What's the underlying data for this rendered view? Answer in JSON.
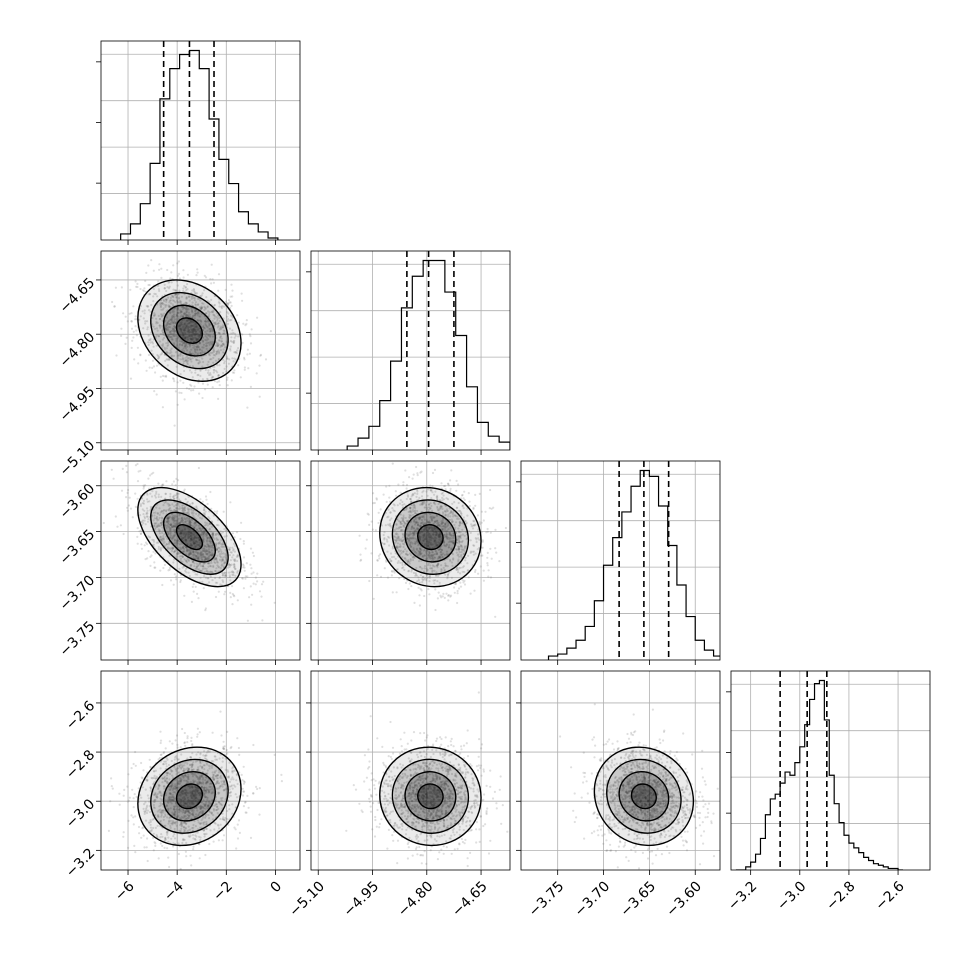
{
  "chart_data": {
    "type": "corner",
    "parameters": [
      {
        "ticks": [
          -6,
          -4,
          -2,
          0
        ],
        "tick_labels": [
          "−6",
          "−4",
          "−2",
          "0"
        ],
        "xlim": [
          -7.1,
          1.0
        ],
        "mean": -3.5,
        "sd": 1.05,
        "quantiles": [
          -4.55,
          -3.5,
          -2.5
        ],
        "hist_edges": [
          -6.3,
          -5.9,
          -5.5,
          -5.1,
          -4.7,
          -4.3,
          -3.9,
          -3.5,
          -3.1,
          -2.7,
          -2.3,
          -1.9,
          -1.5,
          -1.1,
          -0.7,
          -0.3,
          0.1
        ],
        "hist_counts": [
          3,
          8,
          18,
          38,
          70,
          85,
          92,
          94,
          85,
          60,
          40,
          28,
          14,
          8,
          4,
          1
        ]
      },
      {
        "ticks": [
          -5.1,
          -4.95,
          -4.8,
          -4.65
        ],
        "tick_labels": [
          "−5.10",
          "−4.95",
          "−4.80",
          "−4.65"
        ],
        "xlim": [
          -5.12,
          -4.57
        ],
        "mean": -4.79,
        "sd": 0.07,
        "quantiles": [
          -4.855,
          -4.795,
          -4.725
        ],
        "hist_edges": [
          -5.02,
          -4.99,
          -4.96,
          -4.93,
          -4.9,
          -4.87,
          -4.84,
          -4.81,
          -4.78,
          -4.75,
          -4.72,
          -4.69,
          -4.66,
          -4.63,
          -4.6,
          -4.57
        ],
        "hist_counts": [
          2,
          6,
          12,
          25,
          45,
          72,
          88,
          96,
          96,
          80,
          58,
          32,
          14,
          7,
          4
        ]
      },
      {
        "ticks": [
          -3.75,
          -3.7,
          -3.65,
          -3.6
        ],
        "tick_labels": [
          "−3.75",
          "−3.70",
          "−3.65",
          "−3.60"
        ],
        "xlim": [
          -3.79,
          -3.573
        ],
        "mean": -3.656,
        "sd": 0.027,
        "quantiles": [
          -3.683,
          -3.656,
          -3.629
        ],
        "hist_edges": [
          -3.76,
          -3.75,
          -3.74,
          -3.73,
          -3.72,
          -3.71,
          -3.7,
          -3.69,
          -3.68,
          -3.67,
          -3.66,
          -3.65,
          -3.64,
          -3.63,
          -3.62,
          -3.61,
          -3.6,
          -3.59,
          -3.58,
          -3.57
        ],
        "hist_counts": [
          2,
          3,
          6,
          10,
          17,
          30,
          48,
          62,
          75,
          88,
          96,
          93,
          78,
          58,
          38,
          22,
          10,
          5,
          2
        ]
      },
      {
        "ticks": [
          -3.2,
          -3.0,
          -2.8,
          -2.6
        ],
        "tick_labels": [
          "−3.2",
          "−3.0",
          "−2.8",
          "−2.6"
        ],
        "xlim": [
          -3.28,
          -2.47
        ],
        "mean": -2.98,
        "sd": 0.1,
        "quantiles": [
          -3.08,
          -2.97,
          -2.89
        ],
        "hist_edges": [
          -3.26,
          -3.24,
          -3.22,
          -3.2,
          -3.18,
          -3.16,
          -3.14,
          -3.12,
          -3.1,
          -3.08,
          -3.06,
          -3.04,
          -3.02,
          -3.0,
          -2.98,
          -2.96,
          -2.94,
          -2.92,
          -2.9,
          -2.88,
          -2.86,
          -2.84,
          -2.82,
          -2.8,
          -2.78,
          -2.76,
          -2.74,
          -2.72,
          -2.7,
          -2.68,
          -2.66,
          -2.64,
          -2.62,
          -2.6,
          -2.58
        ],
        "hist_counts": [
          0,
          0,
          2,
          5,
          10,
          20,
          35,
          45,
          48,
          55,
          62,
          60,
          68,
          78,
          92,
          108,
          118,
          120,
          95,
          60,
          42,
          30,
          22,
          17,
          14,
          11,
          8,
          6,
          4,
          3,
          2,
          1,
          1,
          0
        ]
      }
    ],
    "pair_correlations": [
      {
        "row": 1,
        "col": 0,
        "rho": -0.25
      },
      {
        "row": 2,
        "col": 0,
        "rho": -0.55
      },
      {
        "row": 2,
        "col": 1,
        "rho": -0.08
      },
      {
        "row": 3,
        "col": 0,
        "rho": 0.15
      },
      {
        "row": 3,
        "col": 1,
        "rho": -0.03
      },
      {
        "row": 3,
        "col": 2,
        "rho": -0.1
      }
    ],
    "contour_levels_sigma": [
      0.5,
      1.0,
      1.5,
      2.0
    ],
    "grid": true,
    "colors": {
      "line": "#000000",
      "scatter": "#6f6f6f",
      "grid": "#b0b0b0"
    }
  }
}
